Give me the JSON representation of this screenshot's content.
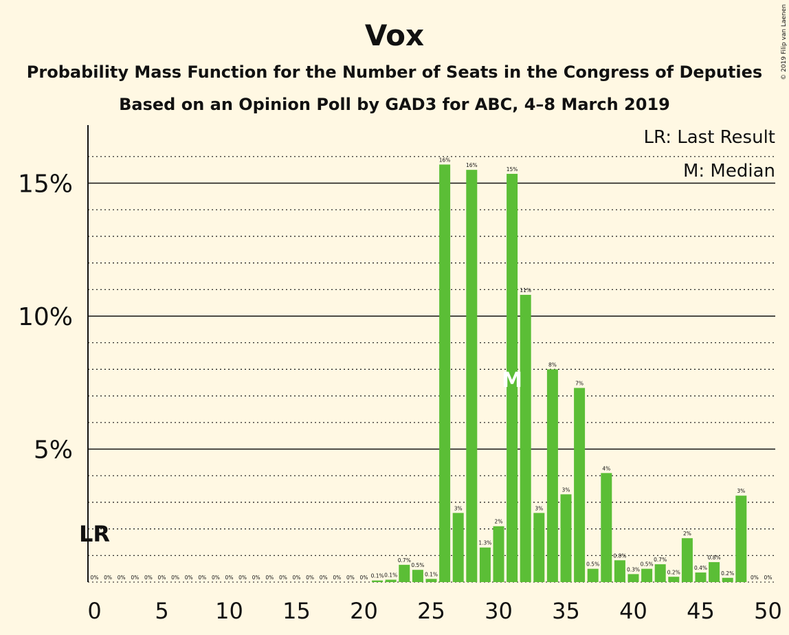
{
  "chart_data": {
    "type": "bar",
    "title": "Vox",
    "subtitle": "Probability Mass Function for the Number of Seats in the Congress of Deputies",
    "subtitle2": "Based on an Opinion Poll by GAD3 for ABC, 4–8 March 2019",
    "copyright": "© 2019 Filip van Laenen",
    "legend": {
      "last_result": "LR: Last Result",
      "median": "M: Median",
      "placement": "top-right"
    },
    "bar_color": "#5BBE36",
    "x_ticks": [
      "0",
      "5",
      "10",
      "15",
      "20",
      "25",
      "30",
      "35",
      "40",
      "45",
      "50"
    ],
    "x_tick_values": [
      0,
      5,
      10,
      15,
      20,
      25,
      30,
      35,
      40,
      45,
      50
    ],
    "y_ticks": [
      "5%",
      "10%",
      "15%"
    ],
    "y_tick_values": [
      5,
      10,
      15
    ],
    "ylim": [
      0,
      16.5
    ],
    "xlim": [
      0,
      50
    ],
    "last_result_label": "LR",
    "last_result_seat": 0,
    "median_label": "M",
    "median_seat": 31,
    "x": [
      0,
      1,
      2,
      3,
      4,
      5,
      6,
      7,
      8,
      9,
      10,
      11,
      12,
      13,
      14,
      15,
      16,
      17,
      18,
      19,
      20,
      21,
      22,
      23,
      24,
      25,
      26,
      27,
      28,
      29,
      30,
      31,
      32,
      33,
      34,
      35,
      36,
      37,
      38,
      39,
      40,
      41,
      42,
      43,
      44,
      45,
      46,
      47,
      48,
      49,
      50
    ],
    "values": [
      0,
      0,
      0,
      0,
      0,
      0,
      0,
      0,
      0,
      0,
      0,
      0,
      0,
      0,
      0,
      0,
      0,
      0,
      0,
      0,
      0,
      0.06,
      0.09,
      0.65,
      0.46,
      0.12,
      15.7,
      2.6,
      15.5,
      1.3,
      2.1,
      15.35,
      10.8,
      2.6,
      8.0,
      3.3,
      7.3,
      0.5,
      4.1,
      0.82,
      0.3,
      0.5,
      0.67,
      0.2,
      1.65,
      0.36,
      0.75,
      0.16,
      3.25,
      0,
      0
    ],
    "labels": [
      "0%",
      "0%",
      "0%",
      "0%",
      "0%",
      "0%",
      "0%",
      "0%",
      "0%",
      "0%",
      "0%",
      "0%",
      "0%",
      "0%",
      "0%",
      "0%",
      "0%",
      "0%",
      "0%",
      "0%",
      "0%",
      "0.1%",
      "0.1%",
      "0.7%",
      "0.5%",
      "0.1%",
      "16%",
      "3%",
      "16%",
      "1.3%",
      "2%",
      "15%",
      "11%",
      "3%",
      "8%",
      "3%",
      "7%",
      "0.5%",
      "4%",
      "0.8%",
      "0.3%",
      "0.5%",
      "0.7%",
      "0.2%",
      "2%",
      "0.4%",
      "0.8%",
      "0.2%",
      "3%",
      "0%",
      "0%"
    ]
  }
}
